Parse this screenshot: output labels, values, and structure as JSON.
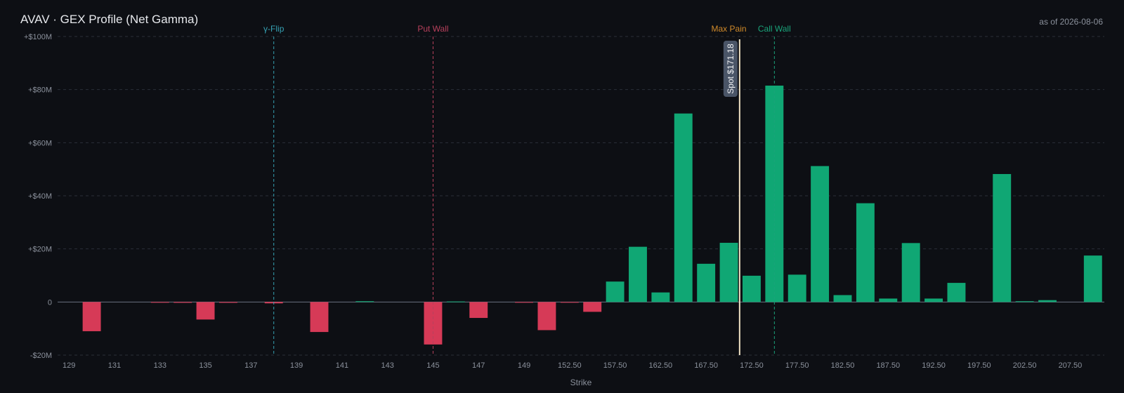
{
  "header": {
    "title": "AVAV · GEX Profile (Net Gamma)",
    "as_of": "as of 2026-08-06"
  },
  "colors": {
    "positive": "#10a774",
    "negative": "#d63a57",
    "gamma_flip": "#36a2b4",
    "put_wall": "#b8405c",
    "max_pain": "#d08a2a",
    "call_wall": "#1aa37a",
    "spot": "#efe2c4",
    "spot_badge": "#4a5567"
  },
  "chart_data": {
    "type": "bar",
    "title": "AVAV · GEX Profile (Net Gamma)",
    "xlabel": "Strike",
    "ylabel": "",
    "ylim": [
      -20,
      100
    ],
    "y_unit": "$M",
    "y_ticks": [
      {
        "value": 100,
        "label": "+$100M"
      },
      {
        "value": 80,
        "label": "+$80M"
      },
      {
        "value": 60,
        "label": "+$60M"
      },
      {
        "value": 40,
        "label": "+$40M"
      },
      {
        "value": 20,
        "label": "+$20M"
      },
      {
        "value": 0,
        "label": "0"
      },
      {
        "value": -20,
        "label": "-$20M"
      }
    ],
    "grid": true,
    "strikes": [
      129,
      130,
      131,
      132,
      133,
      134,
      135,
      136,
      137,
      138,
      139,
      140,
      141,
      142,
      143,
      144,
      145,
      146,
      147,
      148,
      149,
      150,
      152.5,
      155,
      157.5,
      160,
      162.5,
      165,
      167.5,
      170,
      172.5,
      175,
      177.5,
      180,
      182.5,
      185,
      187.5,
      190,
      192.5,
      195,
      197.5,
      200,
      202.5,
      205,
      207.5,
      210
    ],
    "values": [
      0,
      -11,
      0,
      0,
      -0.2,
      -0.3,
      -6.6,
      -0.3,
      0,
      -0.5,
      0,
      -11.3,
      0,
      0.3,
      0,
      0,
      -16,
      0.2,
      -6,
      0,
      -0.2,
      -10.6,
      -0.2,
      -3.7,
      7.7,
      20.8,
      3.6,
      71,
      14.4,
      22.3,
      9.9,
      81.5,
      10.3,
      51.2,
      2.6,
      37.2,
      1.3,
      22.2,
      1.3,
      7.2,
      0,
      48.2,
      0.3,
      0.7,
      0,
      17.5
    ],
    "tick_labels": [
      {
        "strike": 129,
        "label": "129"
      },
      {
        "strike": 131,
        "label": "131"
      },
      {
        "strike": 133,
        "label": "133"
      },
      {
        "strike": 135,
        "label": "135"
      },
      {
        "strike": 137,
        "label": "137"
      },
      {
        "strike": 139,
        "label": "139"
      },
      {
        "strike": 141,
        "label": "141"
      },
      {
        "strike": 143,
        "label": "143"
      },
      {
        "strike": 145,
        "label": "145"
      },
      {
        "strike": 147,
        "label": "147"
      },
      {
        "strike": 149,
        "label": "149"
      },
      {
        "strike": 152.5,
        "label": "152.50"
      },
      {
        "strike": 157.5,
        "label": "157.50"
      },
      {
        "strike": 162.5,
        "label": "162.50"
      },
      {
        "strike": 167.5,
        "label": "167.50"
      },
      {
        "strike": 172.5,
        "label": "172.50"
      },
      {
        "strike": 177.5,
        "label": "177.50"
      },
      {
        "strike": 182.5,
        "label": "182.50"
      },
      {
        "strike": 187.5,
        "label": "187.50"
      },
      {
        "strike": 192.5,
        "label": "192.50"
      },
      {
        "strike": 197.5,
        "label": "197.50"
      },
      {
        "strike": 202.5,
        "label": "202.50"
      },
      {
        "strike": 207.5,
        "label": "207.50"
      }
    ],
    "markers": [
      {
        "key": "gamma_flip",
        "label": "γ-Flip",
        "strike": 138,
        "style": "dashed"
      },
      {
        "key": "put_wall",
        "label": "Put Wall",
        "strike": 145,
        "style": "dashed"
      },
      {
        "key": "max_pain",
        "label": "Max Pain",
        "strike": 170,
        "style": "none"
      },
      {
        "key": "call_wall",
        "label": "Call Wall",
        "strike": 175,
        "style": "dashed"
      }
    ],
    "spot": {
      "value": 171.18,
      "label": "Spot $171.18",
      "between_strikes": [
        170,
        172.5
      ]
    }
  }
}
